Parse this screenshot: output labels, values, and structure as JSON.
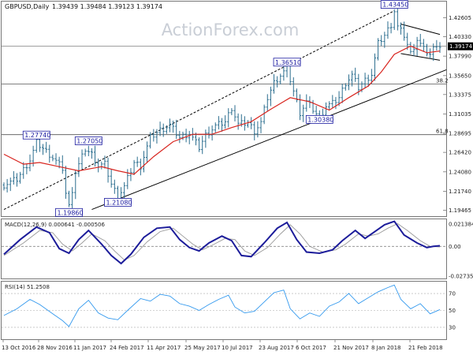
{
  "header": {
    "title": "GBPUSD,Daily",
    "ohlc": "1.39439 1.39484 1.39123 1.39174"
  },
  "watermark": "ActionForex.com",
  "colors": {
    "price_bars": "#2c6e8f",
    "ma": "#d8251f",
    "trend": "#000000",
    "macd": "#1c1c9a",
    "signal": "#999999",
    "rsi": "#3399ee",
    "current_price_bg": "#000000",
    "label_box": "#1a1aa0"
  },
  "current_price": "1.39174",
  "fib_levels": [
    {
      "label": "38.2",
      "value": 1.3465
    },
    {
      "label": "61.8",
      "value": 1.2855
    }
  ],
  "chart_data": [
    {
      "type": "candlestick",
      "title": "GBPUSD,Daily",
      "ylim": [
        1.1875,
        1.4455
      ],
      "y_ticks": [
        "1.42605",
        "1.40330",
        "1.37990",
        "1.35650",
        "1.33375",
        "1.31035",
        "1.28695",
        "1.26420",
        "1.24080",
        "1.21740",
        "1.19465"
      ],
      "x_ticks": [
        "13 Oct 2016",
        "28 Nov 2016",
        "11 Jan 2017",
        "24 Feb 2017",
        "11 Apr 2017",
        "25 May 2017",
        "10 Jul 2017",
        "23 Aug 2017",
        "6 Oct 2017",
        "21 Nov 2017",
        "8 Jan 2018",
        "21 Feb 2018"
      ],
      "price_path": [
        [
          0,
          1.225
        ],
        [
          4,
          1.232
        ],
        [
          8,
          1.255
        ],
        [
          10,
          1.276
        ],
        [
          14,
          1.262
        ],
        [
          18,
          1.245
        ],
        [
          19,
          1.215
        ],
        [
          20,
          1.199
        ],
        [
          22,
          1.24
        ],
        [
          25,
          1.268
        ],
        [
          27,
          1.262
        ],
        [
          29,
          1.248
        ],
        [
          31,
          1.25
        ],
        [
          33,
          1.226
        ],
        [
          35,
          1.211
        ],
        [
          37,
          1.223
        ],
        [
          40,
          1.252
        ],
        [
          42,
          1.248
        ],
        [
          45,
          1.282
        ],
        [
          48,
          1.291
        ],
        [
          51,
          1.297
        ],
        [
          54,
          1.282
        ],
        [
          57,
          1.287
        ],
        [
          60,
          1.27
        ],
        [
          62,
          1.285
        ],
        [
          65,
          1.296
        ],
        [
          68,
          1.301
        ],
        [
          70,
          1.318
        ],
        [
          72,
          1.298
        ],
        [
          75,
          1.3
        ],
        [
          77,
          1.29
        ],
        [
          79,
          1.3
        ],
        [
          81,
          1.33
        ],
        [
          83,
          1.348
        ],
        [
          85,
          1.357
        ],
        [
          87,
          1.365
        ],
        [
          89,
          1.338
        ],
        [
          91,
          1.312
        ],
        [
          93,
          1.325
        ],
        [
          95,
          1.316
        ],
        [
          97,
          1.305
        ],
        [
          99,
          1.32
        ],
        [
          101,
          1.323
        ],
        [
          103,
          1.33
        ],
        [
          105,
          1.348
        ],
        [
          107,
          1.357
        ],
        [
          109,
          1.342
        ],
        [
          111,
          1.351
        ],
        [
          113,
          1.358
        ],
        [
          115,
          1.395
        ],
        [
          117,
          1.405
        ],
        [
          119,
          1.418
        ],
        [
          120,
          1.4345
        ],
        [
          121,
          1.415
        ],
        [
          123,
          1.405
        ],
        [
          125,
          1.383
        ],
        [
          127,
          1.4
        ],
        [
          129,
          1.388
        ],
        [
          131,
          1.382
        ],
        [
          133,
          1.395
        ],
        [
          134,
          1.3917
        ]
      ],
      "ma_path": [
        [
          0,
          1.262
        ],
        [
          6,
          1.25
        ],
        [
          11,
          1.252
        ],
        [
          17,
          1.247
        ],
        [
          23,
          1.242
        ],
        [
          30,
          1.247
        ],
        [
          35,
          1.242
        ],
        [
          40,
          1.238
        ],
        [
          46,
          1.259
        ],
        [
          52,
          1.277
        ],
        [
          58,
          1.286
        ],
        [
          64,
          1.286
        ],
        [
          70,
          1.294
        ],
        [
          76,
          1.301
        ],
        [
          82,
          1.316
        ],
        [
          88,
          1.33
        ],
        [
          94,
          1.325
        ],
        [
          100,
          1.315
        ],
        [
          106,
          1.33
        ],
        [
          112,
          1.344
        ],
        [
          116,
          1.361
        ],
        [
          120,
          1.382
        ],
        [
          125,
          1.392
        ],
        [
          130,
          1.384
        ],
        [
          134,
          1.386
        ]
      ],
      "labels": [
        {
          "text": "1.27740",
          "x": 10,
          "y": 1.2774
        },
        {
          "text": "1.27050",
          "x": 26,
          "y": 1.2705
        },
        {
          "text": "1.19860",
          "x": 20,
          "y": 1.1986
        },
        {
          "text": "1.21080",
          "x": 35,
          "y": 1.2108
        },
        {
          "text": "1.36510",
          "x": 87,
          "y": 1.3651
        },
        {
          "text": "1.30380",
          "x": 97,
          "y": 1.3038
        },
        {
          "text": "1.43450",
          "x": 120,
          "y": 1.4345
        }
      ],
      "trendlines": [
        {
          "style": "dashed",
          "from": [
            0,
            1.1955
          ],
          "to": [
            120,
            1.4345
          ]
        },
        {
          "style": "solid",
          "from": [
            27,
            1.1955
          ],
          "to": [
            136,
            1.3635
          ]
        },
        {
          "style": "solid",
          "from": [
            122,
            1.4185
          ],
          "to": [
            134,
            1.406
          ]
        },
        {
          "style": "solid",
          "from": [
            122,
            1.383
          ],
          "to": [
            134,
            1.375
          ]
        }
      ]
    },
    {
      "type": "line",
      "title": "MACD(12,26,9) 0.000641 -0.000506",
      "ylim": [
        -0.0282,
        0.0238
      ],
      "y_ticks": [
        "0.021384",
        "0.00",
        "-0.027353"
      ],
      "series": [
        {
          "name": "MACD",
          "values": [
            [
              0,
              -0.007
            ],
            [
              5,
              0.006
            ],
            [
              10,
              0.017
            ],
            [
              14,
              0.012
            ],
            [
              17,
              -0.002
            ],
            [
              20,
              -0.006
            ],
            [
              23,
              0.006
            ],
            [
              26,
              0.014
            ],
            [
              30,
              0.002
            ],
            [
              33,
              -0.008
            ],
            [
              36,
              -0.015
            ],
            [
              39,
              -0.007
            ],
            [
              43,
              0.008
            ],
            [
              47,
              0.016
            ],
            [
              51,
              0.017
            ],
            [
              54,
              0.006
            ],
            [
              57,
              -0.001
            ],
            [
              60,
              -0.004
            ],
            [
              63,
              0.003
            ],
            [
              67,
              0.009
            ],
            [
              70,
              0.005
            ],
            [
              73,
              -0.008
            ],
            [
              76,
              -0.009
            ],
            [
              80,
              0.003
            ],
            [
              84,
              0.016
            ],
            [
              87,
              0.021
            ],
            [
              90,
              0.006
            ],
            [
              93,
              -0.005
            ],
            [
              97,
              -0.006
            ],
            [
              101,
              -0.003
            ],
            [
              104,
              0.005
            ],
            [
              108,
              0.014
            ],
            [
              111,
              0.007
            ],
            [
              114,
              0.013
            ],
            [
              117,
              0.019
            ],
            [
              120,
              0.022
            ],
            [
              123,
              0.01
            ],
            [
              127,
              0.003
            ],
            [
              130,
              -0.001
            ],
            [
              132,
              0.0
            ],
            [
              134,
              0.0006
            ]
          ]
        },
        {
          "name": "Signal",
          "values": [
            [
              0,
              -0.008
            ],
            [
              6,
              0.003
            ],
            [
              11,
              0.014
            ],
            [
              15,
              0.012
            ],
            [
              18,
              0.002
            ],
            [
              21,
              -0.004
            ],
            [
              24,
              0.003
            ],
            [
              27,
              0.011
            ],
            [
              31,
              0.005
            ],
            [
              34,
              -0.004
            ],
            [
              37,
              -0.012
            ],
            [
              40,
              -0.008
            ],
            [
              44,
              0.004
            ],
            [
              48,
              0.013
            ],
            [
              52,
              0.016
            ],
            [
              55,
              0.009
            ],
            [
              58,
              0.002
            ],
            [
              61,
              -0.003
            ],
            [
              64,
              0.001
            ],
            [
              68,
              0.007
            ],
            [
              71,
              0.006
            ],
            [
              74,
              -0.004
            ],
            [
              77,
              -0.008
            ],
            [
              81,
              -0.001
            ],
            [
              85,
              0.011
            ],
            [
              88,
              0.019
            ],
            [
              91,
              0.011
            ],
            [
              94,
              0.0
            ],
            [
              98,
              -0.005
            ],
            [
              102,
              -0.003
            ],
            [
              105,
              0.002
            ],
            [
              109,
              0.011
            ],
            [
              112,
              0.009
            ],
            [
              115,
              0.011
            ],
            [
              118,
              0.016
            ],
            [
              121,
              0.02
            ],
            [
              124,
              0.014
            ],
            [
              128,
              0.005
            ],
            [
              131,
              0.0
            ],
            [
              134,
              -0.0005
            ]
          ]
        }
      ]
    },
    {
      "type": "line",
      "title": "RSI(14) 51.2508",
      "ylim": [
        16,
        84
      ],
      "y_ticks": [
        "70",
        "50",
        "30"
      ],
      "series": [
        {
          "name": "RSI",
          "values": [
            [
              0,
              44
            ],
            [
              4,
              52
            ],
            [
              8,
              63
            ],
            [
              11,
              57
            ],
            [
              15,
              46
            ],
            [
              18,
              38
            ],
            [
              20,
              31
            ],
            [
              23,
              52
            ],
            [
              26,
              62
            ],
            [
              29,
              47
            ],
            [
              32,
              41
            ],
            [
              35,
              39
            ],
            [
              38,
              50
            ],
            [
              42,
              64
            ],
            [
              45,
              61
            ],
            [
              48,
              69
            ],
            [
              51,
              67
            ],
            [
              54,
              58
            ],
            [
              57,
              55
            ],
            [
              60,
              50
            ],
            [
              63,
              57
            ],
            [
              66,
              63
            ],
            [
              69,
              68
            ],
            [
              71,
              54
            ],
            [
              74,
              47
            ],
            [
              77,
              49
            ],
            [
              80,
              60
            ],
            [
              83,
              71
            ],
            [
              86,
              74
            ],
            [
              88,
              52
            ],
            [
              91,
              40
            ],
            [
              94,
              47
            ],
            [
              97,
              43
            ],
            [
              100,
              55
            ],
            [
              103,
              60
            ],
            [
              106,
              70
            ],
            [
              109,
              58
            ],
            [
              112,
              65
            ],
            [
              115,
              72
            ],
            [
              118,
              77
            ],
            [
              120,
              80
            ],
            [
              122,
              63
            ],
            [
              125,
              52
            ],
            [
              128,
              58
            ],
            [
              131,
              46
            ],
            [
              134,
              51
            ]
          ]
        }
      ]
    }
  ]
}
